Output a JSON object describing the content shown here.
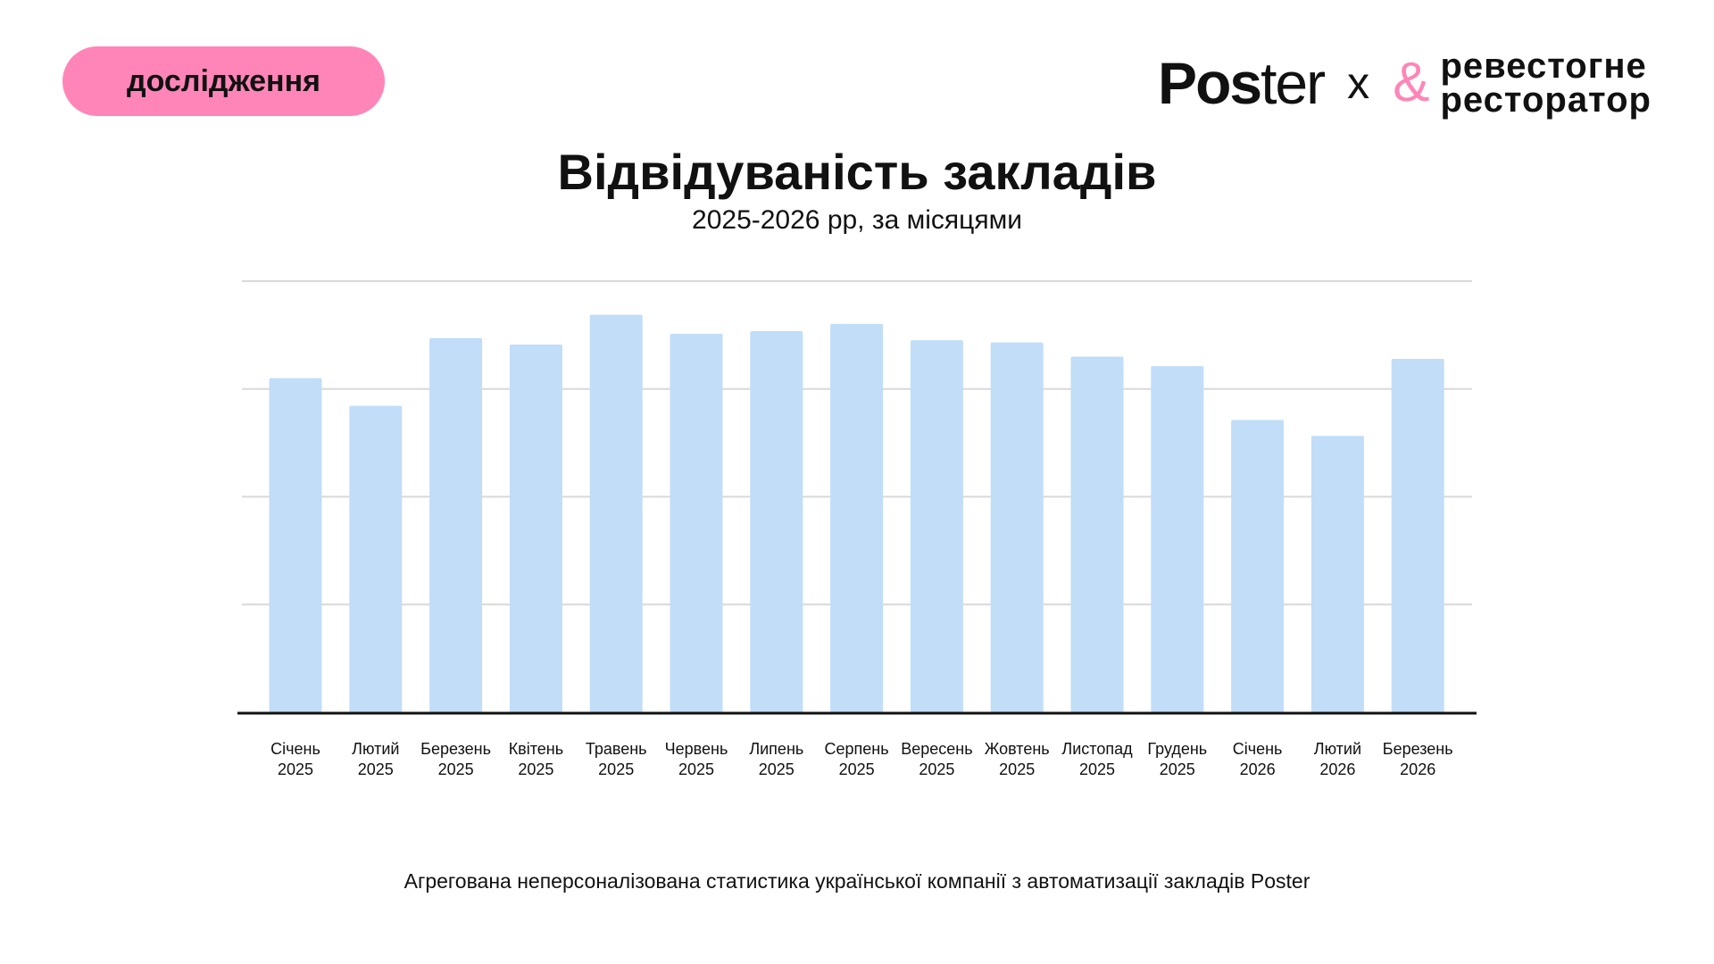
{
  "badge": "дослідження",
  "logo": {
    "left": "Poster",
    "separator": "x",
    "right_line1": "ревестогне",
    "right_line2": "ресторатор",
    "ampersand": "&"
  },
  "colors": {
    "badge": "#ff85b8",
    "bars": "#c2ddf8",
    "grid": "#d9d9d9",
    "axis": "#111111"
  },
  "chart_data": {
    "type": "bar",
    "title": "Відвідуваність закладів",
    "subtitle": "2025-2026 рр, за місяцями",
    "categories": [
      [
        "Січень",
        "2025"
      ],
      [
        "Лютий",
        "2025"
      ],
      [
        "Березень",
        "2025"
      ],
      [
        "Квітень",
        "2025"
      ],
      [
        "Травень",
        "2025"
      ],
      [
        "Червень",
        "2025"
      ],
      [
        "Липень",
        "2025"
      ],
      [
        "Серпень",
        "2025"
      ],
      [
        "Вересень",
        "2025"
      ],
      [
        "Жовтень",
        "2025"
      ],
      [
        "Листопад",
        "2025"
      ],
      [
        "Грудень",
        "2025"
      ],
      [
        "Січень",
        "2026"
      ],
      [
        "Лютий",
        "2026"
      ],
      [
        "Березень",
        "2026"
      ]
    ],
    "values": [
      77.5,
      71.1,
      86.8,
      85.3,
      92.2,
      87.8,
      88.4,
      90.1,
      86.3,
      85.8,
      82.5,
      80.3,
      67.8,
      64.1,
      82.0
    ],
    "ylim": [
      0,
      100
    ],
    "yticks": [
      0,
      25,
      50,
      75,
      100
    ],
    "ytick_labels_shown": false,
    "grid": true,
    "legend": "none"
  },
  "footnote": "Агрегована неперсоналізована статистика української компанії з автоматизації закладів Poster"
}
